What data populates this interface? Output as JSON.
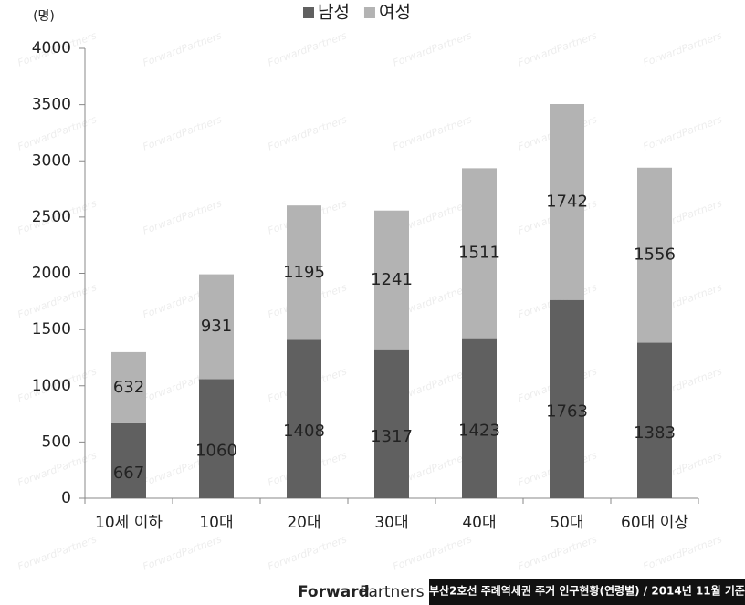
{
  "chart_data": {
    "type": "stacked_bar",
    "y_unit_label": "(명)",
    "categories": [
      "10세 이하",
      "10대",
      "20대",
      "30대",
      "40대",
      "50대",
      "60대 이상"
    ],
    "series": [
      {
        "name": "남성",
        "color": "#606060",
        "values": [
          667,
          1060,
          1408,
          1317,
          1423,
          1763,
          1383
        ]
      },
      {
        "name": "여성",
        "color": "#b3b3b3",
        "values": [
          632,
          931,
          1195,
          1241,
          1511,
          1742,
          1556
        ]
      }
    ],
    "ylim": [
      0,
      4000
    ],
    "yticks": [
      0,
      500,
      1000,
      1500,
      2000,
      2500,
      3000,
      3500,
      4000
    ],
    "legend": "top"
  },
  "watermark": "ForwardPartners",
  "footer": {
    "logo_bold": "Forward",
    "logo_light": "Partners",
    "caption": "부산2호선 주례역세권 주거 인구현황(연령별) / 2014년 11월 기준"
  }
}
